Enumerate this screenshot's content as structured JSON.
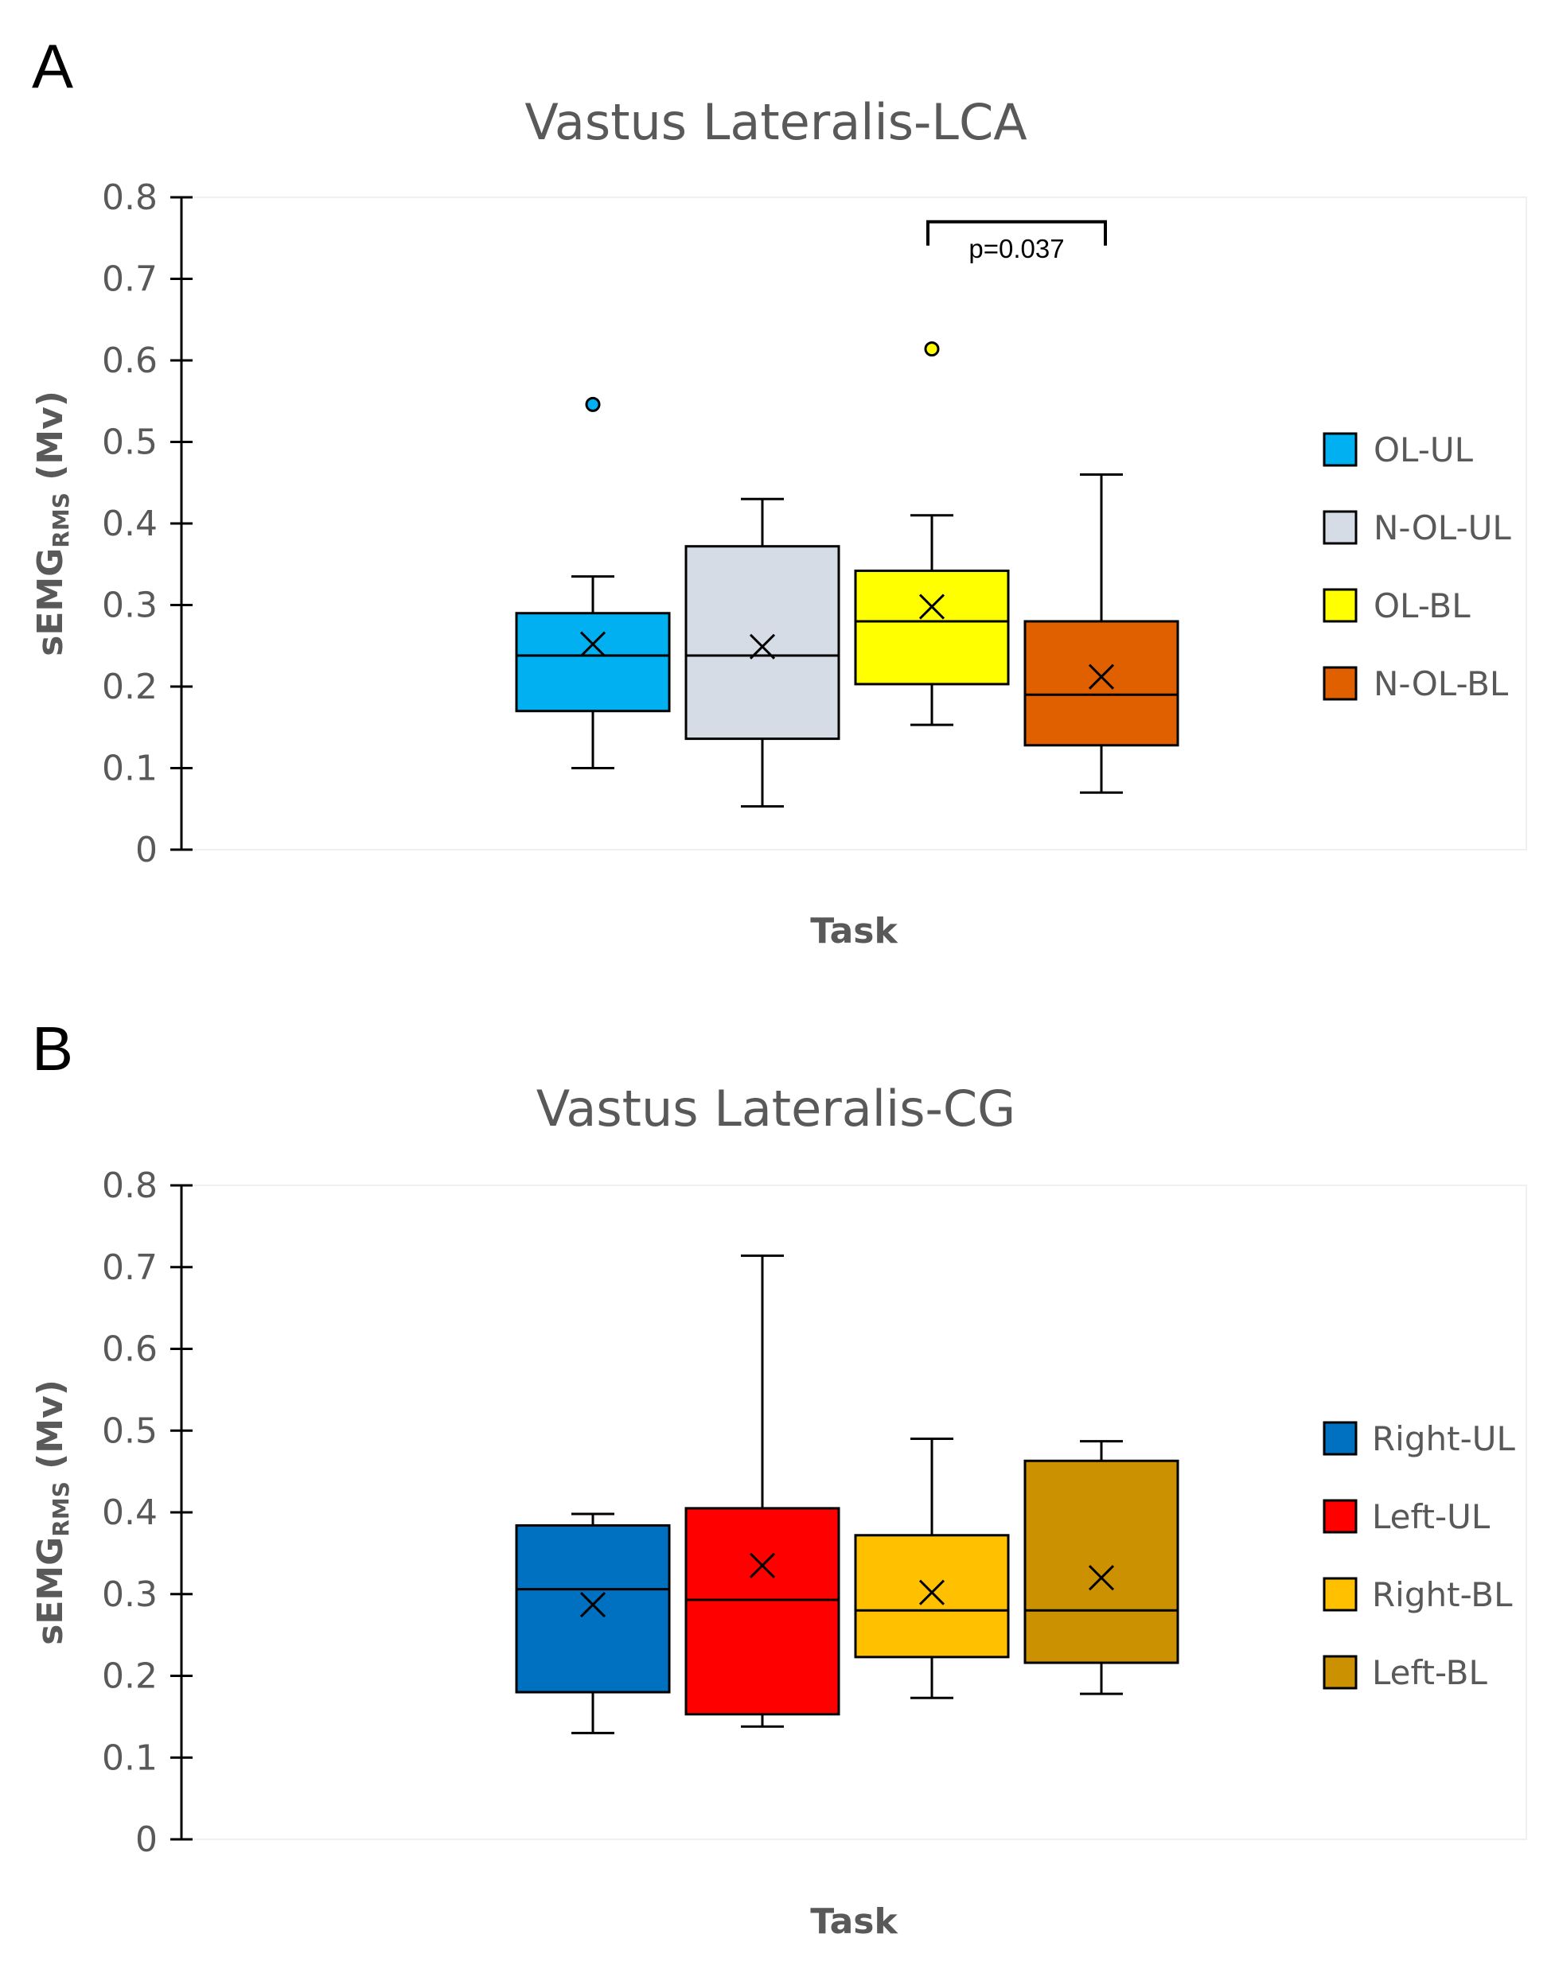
{
  "chart_data": [
    {
      "type": "box",
      "panel_label": "A",
      "title": "Vastus Lateralis-LCA",
      "xlabel": "Task",
      "ylabel_main": "sEMG",
      "ylabel_sub": "RMS",
      "ylabel_unit": " (Mv)",
      "ylim": [
        0,
        0.8
      ],
      "yticks": [
        0,
        0.1,
        0.2,
        0.3,
        0.4,
        0.5,
        0.6,
        0.7,
        0.8
      ],
      "ytick_labels": [
        "0",
        "0.1",
        "0.2",
        "0.3",
        "0.4",
        "0.5",
        "0.6",
        "0.7",
        "0.8"
      ],
      "legend_position": "right",
      "series": [
        {
          "name": "OL-UL",
          "color": "#00B0F0",
          "whisker_low": 0.1,
          "q1": 0.17,
          "median": 0.238,
          "q3": 0.29,
          "whisker_high": 0.335,
          "mean": 0.252,
          "outliers": [
            0.546
          ]
        },
        {
          "name": "N-OL-UL",
          "color": "#D6DCE5",
          "whisker_low": 0.053,
          "q1": 0.136,
          "median": 0.238,
          "q3": 0.372,
          "whisker_high": 0.43,
          "mean": 0.249,
          "outliers": []
        },
        {
          "name": "OL-BL",
          "color": "#FFFF00",
          "whisker_low": 0.153,
          "q1": 0.203,
          "median": 0.28,
          "q3": 0.342,
          "whisker_high": 0.41,
          "mean": 0.298,
          "outliers": [
            0.614
          ]
        },
        {
          "name": "N-OL-BL",
          "color": "#E06000",
          "whisker_low": 0.07,
          "q1": 0.128,
          "median": 0.19,
          "q3": 0.28,
          "whisker_high": 0.46,
          "mean": 0.212,
          "outliers": []
        }
      ],
      "annotation": {
        "text": "p=0.037",
        "from_series": 2,
        "to_series": 3,
        "y": 0.77
      }
    },
    {
      "type": "box",
      "panel_label": "B",
      "title": "Vastus Lateralis-CG",
      "xlabel": "Task",
      "ylabel_main": "sEMG",
      "ylabel_sub": "RMS",
      "ylabel_unit": " (Mv)",
      "ylim": [
        0,
        0.8
      ],
      "yticks": [
        0,
        0.1,
        0.2,
        0.3,
        0.4,
        0.5,
        0.6,
        0.7,
        0.8
      ],
      "ytick_labels": [
        "0",
        "0.1",
        "0.2",
        "0.3",
        "0.4",
        "0.5",
        "0.6",
        "0.7",
        "0.8"
      ],
      "legend_position": "right",
      "series": [
        {
          "name": "Right-UL",
          "color": "#0070C0",
          "whisker_low": 0.13,
          "q1": 0.18,
          "median": 0.306,
          "q3": 0.384,
          "whisker_high": 0.398,
          "mean": 0.287,
          "outliers": []
        },
        {
          "name": "Left-UL",
          "color": "#FF0000",
          "whisker_low": 0.138,
          "q1": 0.153,
          "median": 0.293,
          "q3": 0.405,
          "whisker_high": 0.714,
          "mean": 0.335,
          "outliers": []
        },
        {
          "name": "Right-BL",
          "color": "#FFC000",
          "whisker_low": 0.173,
          "q1": 0.223,
          "median": 0.28,
          "q3": 0.372,
          "whisker_high": 0.49,
          "mean": 0.302,
          "outliers": []
        },
        {
          "name": "Left-BL",
          "color": "#CC9100",
          "whisker_low": 0.178,
          "q1": 0.216,
          "median": 0.28,
          "q3": 0.463,
          "whisker_high": 0.487,
          "mean": 0.32,
          "outliers": []
        }
      ]
    }
  ]
}
